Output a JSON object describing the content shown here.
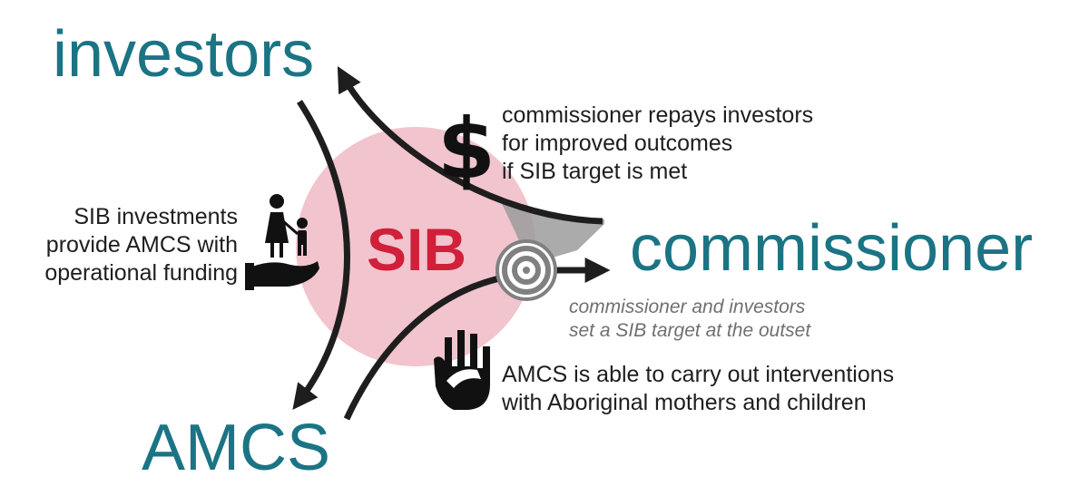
{
  "actors": {
    "investors": "investors",
    "commissioner": "commissioner",
    "amcs": "AMCS"
  },
  "center": {
    "label": "SIB"
  },
  "flows": {
    "repay": {
      "icon": "dollar-icon",
      "lines": [
        "commissioner repays investors",
        "for improved outcomes",
        "if SIB target is met"
      ]
    },
    "funding": {
      "icon": "family-in-hand-icon",
      "lines": [
        "SIB investments",
        "provide AMCS with",
        "operational funding"
      ]
    },
    "target": {
      "icon": "target-icon",
      "lines": [
        "commissioner and investors",
        "set a SIB target at the outset"
      ]
    },
    "interventions": {
      "icon": "helping-hand-icon",
      "lines": [
        "AMCS is able to carry out interventions",
        "with Aboriginal mothers and children"
      ]
    }
  },
  "colors": {
    "teal": "#1b7484",
    "sib_red": "#d0203a",
    "circle_pink": "#f2c4cd",
    "arrow_dark": "#1e1e1e",
    "note_grey": "#6f6f6f",
    "wedge_grey": "#9c9c9c"
  }
}
